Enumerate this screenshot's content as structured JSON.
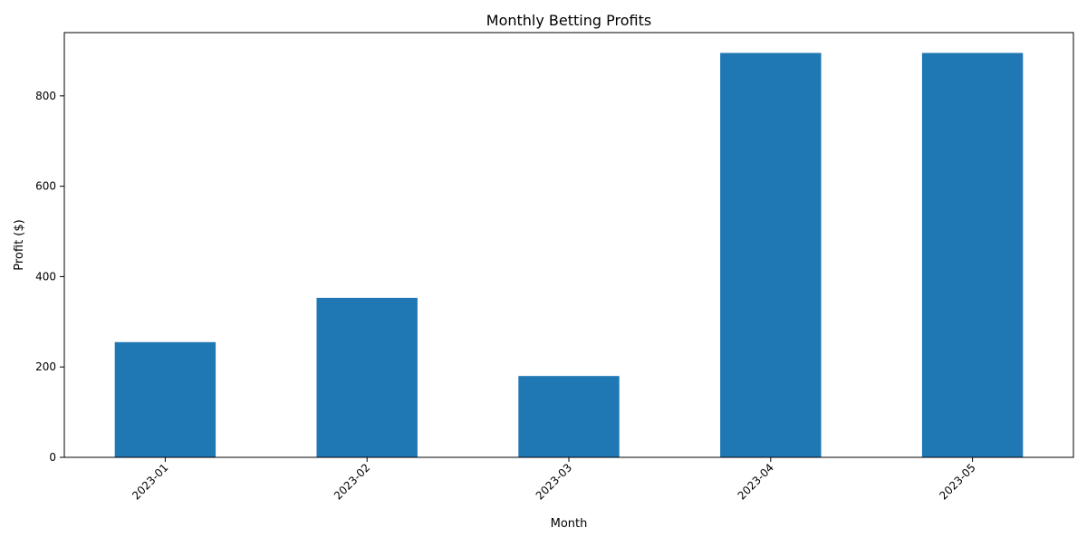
{
  "chart_data": {
    "type": "bar",
    "title": "Monthly Betting Profits",
    "xlabel": "Month",
    "ylabel": "Profit ($)",
    "categories": [
      "2023-01",
      "2023-02",
      "2023-03",
      "2023-04",
      "2023-05"
    ],
    "values": [
      255,
      353,
      180,
      895,
      895
    ],
    "ylim": [
      0,
      940
    ],
    "yticks": [
      0,
      200,
      400,
      600,
      800
    ],
    "grid": false,
    "legend": "none",
    "bar_color": "#1f77b4",
    "xtick_rotation_deg": 45
  }
}
